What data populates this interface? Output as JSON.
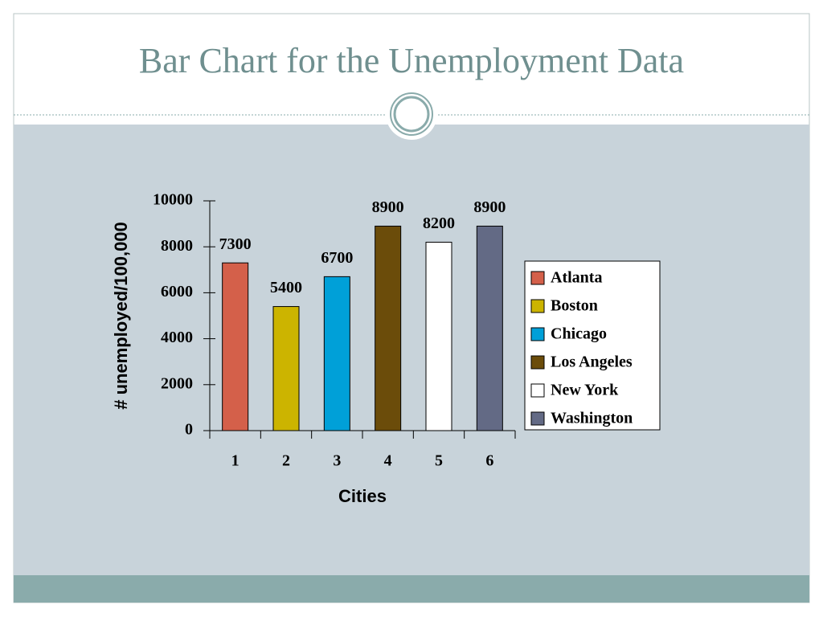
{
  "chart_data": {
    "type": "bar",
    "title": "Bar Chart for the Unemployment Data",
    "ylabel": "# unemployed/100,000",
    "xlabel": "Cities",
    "categories": [
      "1",
      "2",
      "3",
      "4",
      "5",
      "6"
    ],
    "values": [
      7300,
      5400,
      6700,
      8900,
      8200,
      8900
    ],
    "colors": [
      "#d4604a",
      "#ccb400",
      "#00a0d8",
      "#6b4c0a",
      "#ffffff",
      "#636a85"
    ],
    "legend": [
      "Atlanta",
      "Boston",
      "Chicago",
      "Los Angeles",
      "New York",
      "Washington"
    ],
    "ylim": [
      0,
      10000
    ],
    "yticks": [
      0,
      2000,
      4000,
      6000,
      8000,
      10000
    ],
    "legend_position": "right"
  }
}
